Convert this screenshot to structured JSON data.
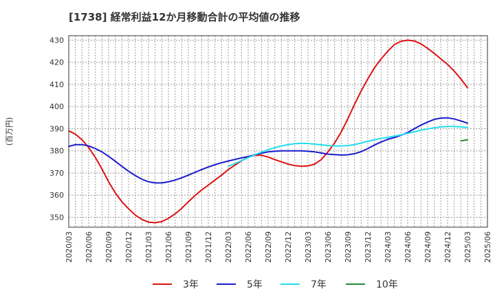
{
  "chart_data": {
    "type": "line",
    "title": "[1738]  経常利益12か月移動合計の平均値の推移",
    "ylabel": "(百万円)",
    "ylim": [
      345.5,
      432
    ],
    "yticks": [
      350,
      360,
      370,
      380,
      390,
      400,
      410,
      420,
      430
    ],
    "xlim": [
      "2020/03",
      "2025/06"
    ],
    "xtick_labels": [
      "2020/03",
      "2020/06",
      "2020/09",
      "2020/12",
      "2021/03",
      "2021/06",
      "2021/09",
      "2021/12",
      "2022/03",
      "2022/06",
      "2022/09",
      "2022/12",
      "2023/03",
      "2023/06",
      "2023/09",
      "2023/12",
      "2024/03",
      "2024/06",
      "2024/09",
      "2024/12",
      "2025/03",
      "2025/06"
    ],
    "grid": true,
    "legend": "bottom",
    "series": [
      {
        "name": "3年",
        "color": "#dd1111",
        "x": [
          "2020/03",
          "2020/04",
          "2020/05",
          "2020/06",
          "2020/07",
          "2020/08",
          "2020/09",
          "2020/10",
          "2020/11",
          "2020/12",
          "2021/01",
          "2021/02",
          "2021/03",
          "2021/04",
          "2021/05",
          "2021/06",
          "2021/07",
          "2021/08",
          "2021/09",
          "2021/10",
          "2021/11",
          "2021/12",
          "2022/01",
          "2022/02",
          "2022/03",
          "2022/04",
          "2022/05",
          "2022/06",
          "2022/07",
          "2022/08",
          "2022/09",
          "2022/10",
          "2022/11",
          "2022/12",
          "2023/01",
          "2023/02",
          "2023/03",
          "2023/04",
          "2023/05",
          "2023/06",
          "2023/07",
          "2023/08",
          "2023/09",
          "2023/10",
          "2023/11",
          "2023/12",
          "2024/01",
          "2024/02",
          "2024/03",
          "2024/04",
          "2024/05",
          "2024/06",
          "2024/07",
          "2024/08",
          "2024/09",
          "2024/10",
          "2024/11",
          "2024/12",
          "2025/01",
          "2025/02",
          "2025/03"
        ],
        "values": [
          389,
          387.5,
          385,
          381.5,
          377,
          371.8,
          366,
          361,
          357,
          353.8,
          351,
          349,
          347.8,
          347.5,
          348,
          349.5,
          351.5,
          354,
          357,
          359.8,
          362.3,
          364.5,
          366.8,
          369,
          371.5,
          373.5,
          375.5,
          377.2,
          378,
          378,
          377.2,
          376,
          375,
          374,
          373.3,
          373,
          373.2,
          374,
          376,
          379.5,
          383.5,
          388.5,
          394.5,
          401,
          407,
          412.5,
          417.5,
          421.5,
          425,
          428,
          429.5,
          430,
          429.6,
          428.3,
          426.3,
          424,
          421.5,
          419,
          416,
          412.5,
          408.5
        ]
      },
      {
        "name": "5年",
        "color": "#1a1acc",
        "x": [
          "2020/03",
          "2020/04",
          "2020/05",
          "2020/06",
          "2020/07",
          "2020/08",
          "2020/09",
          "2020/10",
          "2020/11",
          "2020/12",
          "2021/01",
          "2021/02",
          "2021/03",
          "2021/04",
          "2021/05",
          "2021/06",
          "2021/07",
          "2021/08",
          "2021/09",
          "2021/10",
          "2021/11",
          "2021/12",
          "2022/01",
          "2022/02",
          "2022/03",
          "2022/04",
          "2022/05",
          "2022/06",
          "2022/07",
          "2022/08",
          "2022/09",
          "2022/10",
          "2022/11",
          "2022/12",
          "2023/01",
          "2023/02",
          "2023/03",
          "2023/04",
          "2023/05",
          "2023/06",
          "2023/07",
          "2023/08",
          "2023/09",
          "2023/10",
          "2023/11",
          "2023/12",
          "2024/01",
          "2024/02",
          "2024/03",
          "2024/04",
          "2024/05",
          "2024/06",
          "2024/07",
          "2024/08",
          "2024/09",
          "2024/10",
          "2024/11",
          "2024/12",
          "2025/01",
          "2025/02",
          "2025/03"
        ],
        "values": [
          382,
          382.8,
          382.8,
          382.2,
          381,
          379.5,
          377.5,
          375.3,
          373,
          370.8,
          368.8,
          367.2,
          366,
          365.5,
          365.5,
          366,
          366.8,
          367.8,
          369,
          370.3,
          371.5,
          372.7,
          373.7,
          374.6,
          375.4,
          376.1,
          376.8,
          377.4,
          378.2,
          378.9,
          379.5,
          379.8,
          380,
          380,
          380,
          380,
          379.8,
          379.5,
          379,
          378.5,
          378.3,
          378.1,
          378.2,
          378.7,
          379.6,
          381,
          382.6,
          384,
          385.2,
          386,
          387,
          388.3,
          390,
          391.6,
          393,
          394.2,
          394.8,
          394.9,
          394.4,
          393.5,
          392.5
        ]
      },
      {
        "name": "7年",
        "color": "#22ddee",
        "x": [
          "2022/03",
          "2022/04",
          "2022/05",
          "2022/06",
          "2022/07",
          "2022/08",
          "2022/09",
          "2022/10",
          "2022/11",
          "2022/12",
          "2023/01",
          "2023/02",
          "2023/03",
          "2023/04",
          "2023/05",
          "2023/06",
          "2023/07",
          "2023/08",
          "2023/09",
          "2023/10",
          "2023/11",
          "2023/12",
          "2024/01",
          "2024/02",
          "2024/03",
          "2024/04",
          "2024/05",
          "2024/06",
          "2024/07",
          "2024/08",
          "2024/09",
          "2024/10",
          "2024/11",
          "2024/12",
          "2025/01",
          "2025/02",
          "2025/03"
        ],
        "values": [
          373,
          374.2,
          375.6,
          376.9,
          378.2,
          379.4,
          380.5,
          381.4,
          382.2,
          382.8,
          383.2,
          383.4,
          383.3,
          383,
          382.7,
          382.4,
          382.2,
          382.2,
          382.4,
          382.8,
          383.5,
          384.3,
          385,
          385.6,
          386.1,
          386.6,
          387.2,
          387.9,
          388.6,
          389.3,
          389.9,
          390.4,
          390.8,
          391,
          391,
          390.8,
          390.5
        ]
      },
      {
        "name": "10年",
        "color": "#228833",
        "x": [
          "2025/02",
          "2025/03"
        ],
        "values": [
          384.5,
          385
        ]
      }
    ]
  }
}
